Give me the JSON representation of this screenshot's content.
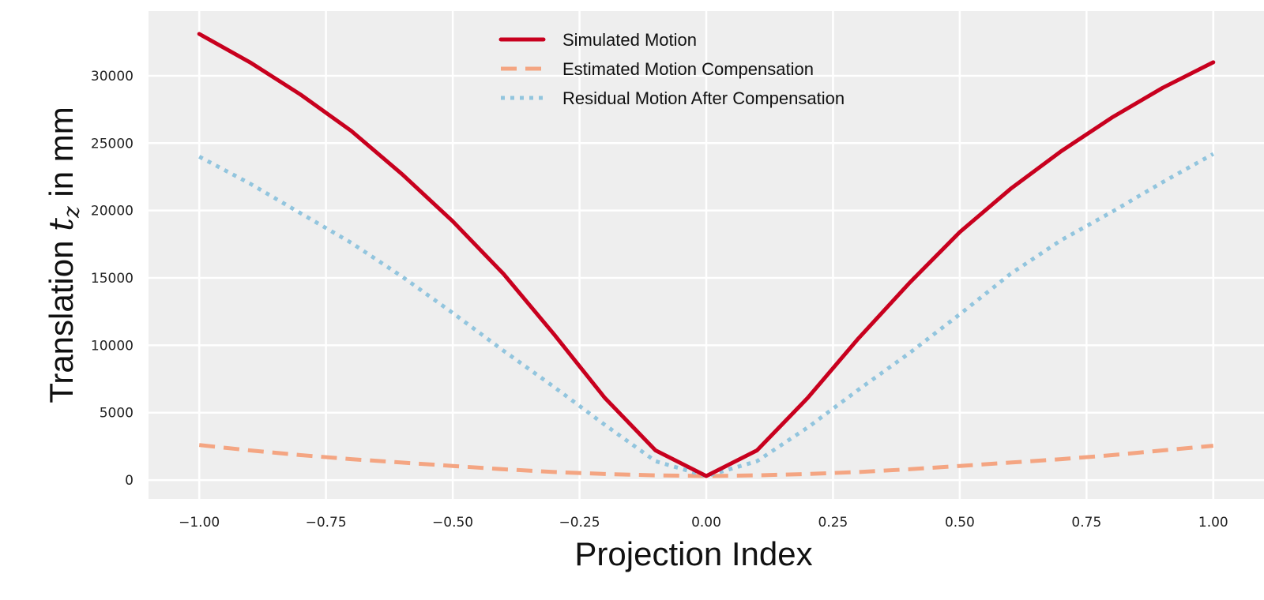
{
  "chart_data": {
    "type": "line",
    "xlabel": "Projection Index",
    "ylabel": {
      "prefix": "Translation ",
      "symbol": "t",
      "subscript": "z",
      "suffix": " in mm"
    },
    "xlim": [
      -1.1,
      1.1
    ],
    "ylim": [
      -1400,
      34800
    ],
    "grid": true,
    "legend_position": "top-center",
    "x_ticks": [
      -1.0,
      -0.75,
      -0.5,
      -0.25,
      0.0,
      0.25,
      0.5,
      0.75,
      1.0
    ],
    "x_tick_labels": [
      "−1.00",
      "−0.75",
      "−0.50",
      "−0.25",
      "0.00",
      "0.25",
      "0.50",
      "0.75",
      "1.00"
    ],
    "y_ticks": [
      0,
      5000,
      10000,
      15000,
      20000,
      25000,
      30000
    ],
    "y_tick_labels": [
      "0",
      "5000",
      "10000",
      "15000",
      "20000",
      "25000",
      "30000"
    ],
    "x": [
      -1.0,
      -0.9,
      -0.8,
      -0.7,
      -0.6,
      -0.5,
      -0.4,
      -0.3,
      -0.2,
      -0.1,
      0.0,
      0.1,
      0.2,
      0.3,
      0.4,
      0.5,
      0.6,
      0.7,
      0.8,
      0.9,
      1.0
    ],
    "series": [
      {
        "name": "Simulated Motion",
        "color": "#c8001e",
        "style": "solid",
        "values": [
          33100,
          31000,
          28600,
          25900,
          22700,
          19200,
          15300,
          10800,
          6100,
          2200,
          300,
          2200,
          6100,
          10500,
          14600,
          18400,
          21600,
          24400,
          26900,
          29100,
          31000
        ]
      },
      {
        "name": "Estimated Motion Compensation",
        "color": "#f4a582",
        "style": "dashed",
        "values": [
          2600,
          2200,
          1850,
          1550,
          1300,
          1050,
          800,
          600,
          450,
          350,
          300,
          350,
          450,
          600,
          800,
          1050,
          1300,
          1550,
          1850,
          2200,
          2550
        ]
      },
      {
        "name": "Residual Motion After Compensation",
        "color": "#92c5de",
        "style": "dotted",
        "values": [
          24000,
          22000,
          19800,
          17600,
          15100,
          12400,
          9600,
          6900,
          4100,
          1400,
          300,
          1400,
          3900,
          6700,
          9400,
          12300,
          15300,
          17800,
          19900,
          22100,
          24200
        ]
      }
    ]
  }
}
